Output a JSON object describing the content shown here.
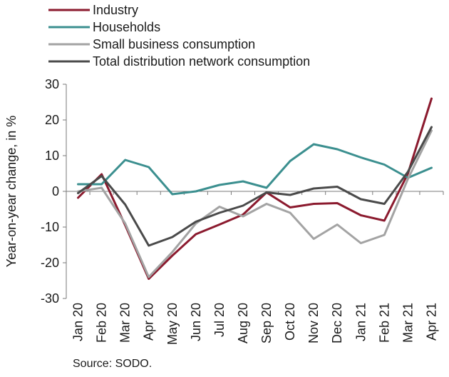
{
  "chart_data": {
    "type": "line",
    "title": "",
    "xlabel": "",
    "ylabel": "Year-on-year change, in %",
    "ylim": [
      -30,
      30
    ],
    "yticks": [
      -30,
      -20,
      -10,
      0,
      10,
      20,
      30
    ],
    "grid": false,
    "legend_position": "top-left",
    "categories": [
      "Jan 20",
      "Feb 20",
      "Mar 20",
      "Apr 20",
      "May 20",
      "Jun 20",
      "Jul 20",
      "Aug 20",
      "Sep 20",
      "Oct 20",
      "Nov 20",
      "Dec 20",
      "Jan 21",
      "Feb 21",
      "Mar 21",
      "Apr 21"
    ],
    "series": [
      {
        "name": "Industry",
        "color": "#8b1a2e",
        "values": [
          -1.8,
          4.8,
          -9.5,
          -24.5,
          -18.0,
          -12.0,
          -9.3,
          -6.5,
          -0.3,
          -4.5,
          -3.5,
          -3.3,
          -6.7,
          -8.2,
          5.0,
          26.0
        ]
      },
      {
        "name": "Households",
        "color": "#3b8f8f",
        "values": [
          2.0,
          2.0,
          8.8,
          6.8,
          -0.8,
          0.0,
          1.8,
          2.8,
          1.0,
          8.5,
          13.2,
          11.8,
          9.5,
          7.5,
          3.8,
          6.6
        ]
      },
      {
        "name": "Small business consumption",
        "color": "#a3a3a3",
        "values": [
          0.0,
          1.0,
          -9.0,
          -24.0,
          -17.0,
          -9.0,
          -4.3,
          -7.0,
          -3.5,
          -6.0,
          -13.3,
          -9.3,
          -14.5,
          -12.2,
          3.5,
          17.0
        ]
      },
      {
        "name": "Total distribution network consumption",
        "color": "#4a4a4a",
        "values": [
          -0.5,
          4.3,
          -3.7,
          -15.2,
          -12.8,
          -8.5,
          -6.0,
          -4.0,
          -0.3,
          -1.0,
          0.8,
          1.3,
          -2.2,
          -3.5,
          5.5,
          18.0
        ]
      }
    ],
    "source": "Source: SODO."
  }
}
